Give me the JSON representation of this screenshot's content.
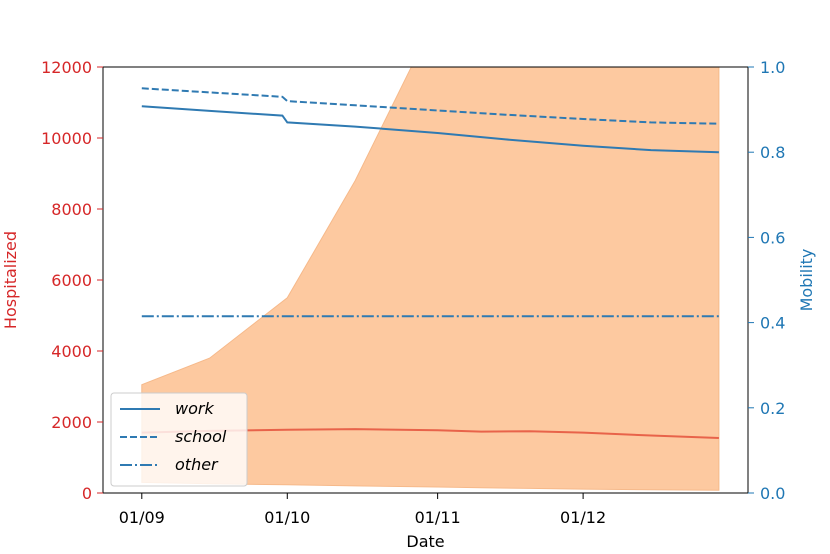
{
  "chart_data": {
    "type": "line",
    "xlabel": "Date",
    "ylabel_left": "Hospitalized",
    "ylabel_right": "Mobility",
    "x_ticks": [
      "01/09",
      "01/10",
      "01/11",
      "01/12"
    ],
    "x_range": [
      "2020-08-24",
      "2021-01-04"
    ],
    "x_tick_dates": [
      "2020-09-01",
      "2020-10-01",
      "2020-11-01",
      "2020-12-01"
    ],
    "ylim_left": [
      0,
      12000
    ],
    "ylim_right": [
      0.0,
      1.0
    ],
    "y_left_ticks": [
      "0",
      "2000",
      "4000",
      "6000",
      "8000",
      "10000",
      "12000"
    ],
    "y_right_ticks": [
      "0.0",
      "0.2",
      "0.4",
      "0.6",
      "0.8",
      "1.0"
    ],
    "colors": {
      "left_axis": "#d62728",
      "right_axis": "#1f77b4",
      "hospitalized_line": "#e8634a",
      "band_fill": "#fdc9a0",
      "band_edge": "#f6b98a",
      "mobility": "#2f7ab2"
    },
    "hospitalized": {
      "dates": [
        "2020-09-01",
        "2020-09-15",
        "2020-10-01",
        "2020-10-15",
        "2020-11-01",
        "2020-11-10",
        "2020-11-20",
        "2020-12-01",
        "2020-12-15",
        "2020-12-29"
      ],
      "median": [
        1700,
        1750,
        1780,
        1800,
        1770,
        1730,
        1740,
        1700,
        1620,
        1550
      ],
      "upper": [
        3050,
        3800,
        5500,
        8800,
        13500,
        16000,
        18500,
        20000,
        21000,
        21500
      ],
      "lower": [
        300,
        260,
        230,
        200,
        170,
        150,
        130,
        110,
        90,
        80
      ]
    },
    "series": [
      {
        "name": "work",
        "linestyle": "solid",
        "dates": [
          "2020-09-01",
          "2020-09-15",
          "2020-09-30",
          "2020-10-01",
          "2020-10-15",
          "2020-11-01",
          "2020-11-15",
          "2020-12-01",
          "2020-12-15",
          "2020-12-29"
        ],
        "values": [
          0.908,
          0.897,
          0.886,
          0.87,
          0.86,
          0.845,
          0.83,
          0.815,
          0.805,
          0.8
        ]
      },
      {
        "name": "school",
        "linestyle": "dashed",
        "dates": [
          "2020-09-01",
          "2020-09-30",
          "2020-10-01",
          "2020-10-15",
          "2020-11-01",
          "2020-11-15",
          "2020-12-01",
          "2020-12-15",
          "2020-12-29"
        ],
        "values": [
          0.95,
          0.93,
          0.92,
          0.91,
          0.898,
          0.888,
          0.878,
          0.87,
          0.867
        ]
      },
      {
        "name": "other",
        "linestyle": "dashdot",
        "dates": [
          "2020-09-01",
          "2020-12-29"
        ],
        "values": [
          0.415,
          0.415
        ]
      }
    ],
    "legend_position": "lower-left",
    "grid": false
  }
}
